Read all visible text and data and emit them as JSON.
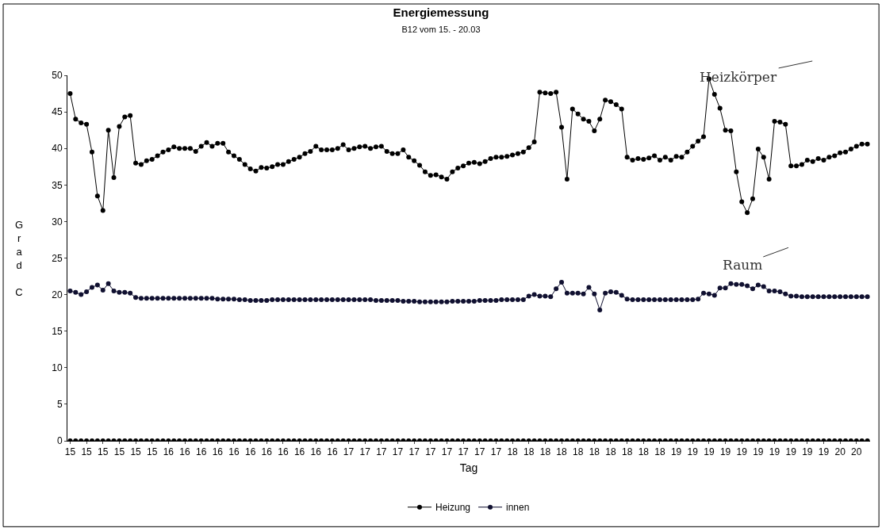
{
  "chart_data": {
    "type": "line",
    "title": "Energiemessung",
    "subtitle": "B12 vom 15. - 20.03",
    "xlabel": "Tag",
    "ylabel": "Grad C",
    "categories": [
      "15",
      null,
      null,
      "15",
      null,
      null,
      "15",
      null,
      null,
      "15",
      null,
      null,
      "15",
      null,
      null,
      "15",
      null,
      null,
      "16",
      null,
      null,
      "16",
      null,
      null,
      "16",
      null,
      null,
      "16",
      null,
      null,
      "16",
      null,
      null,
      "16",
      null,
      null,
      "16",
      null,
      null,
      "16",
      null,
      null,
      "16",
      null,
      null,
      "16",
      null,
      null,
      "16",
      null,
      null,
      "17",
      null,
      null,
      "17",
      null,
      null,
      "17",
      null,
      null,
      "17",
      null,
      null,
      "17",
      null,
      null,
      "17",
      null,
      null,
      "17",
      null,
      null,
      "17",
      null,
      null,
      "17",
      null,
      null,
      "17",
      null,
      null,
      "18",
      null,
      null,
      "18",
      null,
      null,
      "18",
      null,
      null,
      "18",
      null,
      null,
      "18",
      null,
      null,
      "18",
      null,
      null,
      "18",
      null,
      null,
      "18",
      null,
      null,
      "18",
      null,
      null,
      "18",
      null,
      null,
      "19",
      null,
      null,
      "19",
      null,
      null,
      "19",
      null,
      null,
      "19",
      null,
      null,
      "19",
      null,
      null,
      "19",
      null,
      null,
      "19",
      null,
      null,
      "19",
      null,
      null,
      "19",
      null,
      null,
      "19",
      null,
      null,
      "20",
      null,
      null,
      "20",
      null,
      null
    ],
    "series": [
      {
        "name": "Heizung",
        "color": "#000000",
        "values": [
          47.5,
          44,
          43.5,
          43.3,
          39.5,
          33.5,
          31.5,
          42.5,
          36,
          43,
          44.3,
          44.5,
          38,
          37.8,
          38.3,
          38.5,
          39,
          39.5,
          39.8,
          40.2,
          40,
          40,
          40,
          39.6,
          40.3,
          40.8,
          40.3,
          40.7,
          40.7,
          39.5,
          39,
          38.5,
          37.8,
          37.2,
          36.9,
          37.4,
          37.3,
          37.5,
          37.8,
          37.8,
          38.2,
          38.5,
          38.8,
          39.3,
          39.6,
          40.3,
          39.8,
          39.8,
          39.8,
          40,
          40.5,
          39.8,
          40,
          40.2,
          40.3,
          40,
          40.2,
          40.3,
          39.6,
          39.3,
          39.3,
          39.8,
          38.8,
          38.3,
          37.7,
          36.8,
          36.3,
          36.4,
          36.1,
          35.8,
          36.8,
          37.3,
          37.6,
          38,
          38.1,
          37.9,
          38.2,
          38.6,
          38.8,
          38.8,
          38.9,
          39.1,
          39.3,
          39.5,
          40.1,
          40.9,
          47.7,
          47.6,
          47.5,
          47.7,
          42.9,
          35.8,
          45.4,
          44.7,
          44,
          43.7,
          42.4,
          44,
          46.6,
          46.4,
          46,
          45.4,
          38.8,
          38.4,
          38.6,
          38.5,
          38.7,
          39,
          38.4,
          38.8,
          38.4,
          38.9,
          38.8,
          39.5,
          40.3,
          41,
          41.6,
          49.5,
          47.4,
          45.5,
          42.5,
          42.4,
          36.8,
          32.7,
          31.2,
          33.1,
          39.9,
          38.8,
          35.8,
          43.7,
          43.6,
          43.3,
          37.6,
          37.6,
          37.8,
          38.4,
          38.2,
          38.6,
          38.4,
          38.8,
          39,
          39.4,
          39.5,
          39.9,
          40.3,
          40.6,
          40.6
        ]
      },
      {
        "name": "innen",
        "color": "#101030",
        "values": [
          20.5,
          20.3,
          20,
          20.4,
          21,
          21.3,
          20.6,
          21.5,
          20.5,
          20.3,
          20.3,
          20.2,
          19.6,
          19.5,
          19.5,
          19.5,
          19.5,
          19.5,
          19.5,
          19.5,
          19.5,
          19.5,
          19.5,
          19.5,
          19.5,
          19.5,
          19.5,
          19.4,
          19.4,
          19.4,
          19.4,
          19.3,
          19.3,
          19.2,
          19.2,
          19.2,
          19.2,
          19.3,
          19.3,
          19.3,
          19.3,
          19.3,
          19.3,
          19.3,
          19.3,
          19.3,
          19.3,
          19.3,
          19.3,
          19.3,
          19.3,
          19.3,
          19.3,
          19.3,
          19.3,
          19.3,
          19.2,
          19.2,
          19.2,
          19.2,
          19.2,
          19.1,
          19.1,
          19.1,
          19.0,
          19.0,
          19.0,
          19.0,
          19.0,
          19.0,
          19.1,
          19.1,
          19.1,
          19.1,
          19.1,
          19.2,
          19.2,
          19.2,
          19.2,
          19.3,
          19.3,
          19.3,
          19.3,
          19.3,
          19.8,
          20,
          19.8,
          19.8,
          19.7,
          20.8,
          21.7,
          20.2,
          20.2,
          20.2,
          20.1,
          21,
          20.1,
          17.9,
          20.2,
          20.4,
          20.3,
          19.9,
          19.4,
          19.3,
          19.3,
          19.3,
          19.3,
          19.3,
          19.3,
          19.3,
          19.3,
          19.3,
          19.3,
          19.3,
          19.3,
          19.4,
          20.2,
          20.1,
          19.9,
          20.9,
          20.9,
          21.5,
          21.4,
          21.4,
          21.2,
          20.8,
          21.3,
          21.1,
          20.5,
          20.5,
          20.4,
          20.1,
          19.8,
          19.8,
          19.7,
          19.7,
          19.7,
          19.7,
          19.7,
          19.7,
          19.7,
          19.7,
          19.7,
          19.7,
          19.7,
          19.7,
          19.7
        ]
      },
      {
        "color": "#000000",
        "values": [
          0,
          0,
          0,
          0,
          0,
          0,
          0,
          0,
          0,
          0,
          0,
          0,
          0,
          0,
          0,
          0,
          0,
          0,
          0,
          0,
          0,
          0,
          0,
          0,
          0,
          0,
          0,
          0,
          0,
          0,
          0,
          0,
          0,
          0,
          0,
          0,
          0,
          0,
          0,
          0,
          0,
          0,
          0,
          0,
          0,
          0,
          0,
          0,
          0,
          0,
          0,
          0,
          0,
          0,
          0,
          0,
          0,
          0,
          0,
          0,
          0,
          0,
          0,
          0,
          0,
          0,
          0,
          0,
          0,
          0,
          0,
          0,
          0,
          0,
          0,
          0,
          0,
          0,
          0,
          0,
          0,
          0,
          0,
          0,
          0,
          0,
          0,
          0,
          0,
          0,
          0,
          0,
          0,
          0,
          0,
          0,
          0,
          0,
          0,
          0,
          0,
          0,
          0,
          0,
          0,
          0,
          0,
          0,
          0,
          0,
          0,
          0,
          0,
          0,
          0,
          0,
          0,
          0,
          0,
          0,
          0,
          0,
          0,
          0,
          0,
          0,
          0,
          0,
          0,
          0,
          0,
          0,
          0,
          0,
          0,
          0,
          0,
          0,
          0,
          0,
          0,
          0,
          0,
          0,
          0,
          0,
          0
        ]
      }
    ],
    "annotations": [
      "Heizkörper",
      "Raum"
    ],
    "ylim": [
      0,
      50
    ],
    "yticks": [
      0,
      5,
      10,
      15,
      20,
      25,
      30,
      35,
      40,
      45,
      50
    ],
    "legend": "bottom",
    "marker": "circle",
    "line_style": "solid"
  }
}
